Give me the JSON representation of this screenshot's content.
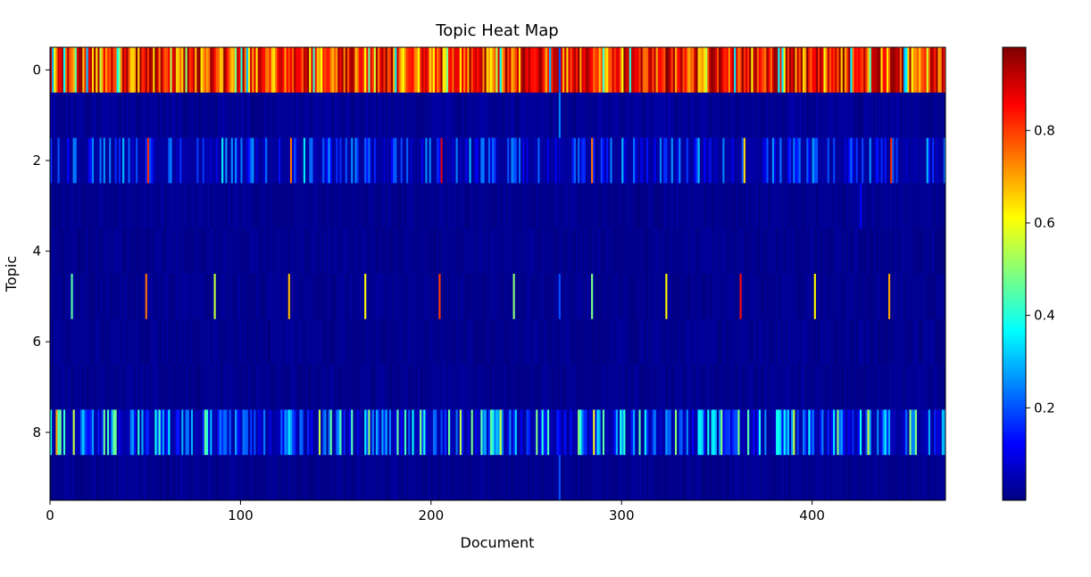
{
  "chart_data": {
    "type": "heatmap",
    "title": "Topic Heat Map",
    "xlabel": "Document",
    "ylabel": "Topic",
    "xlim": [
      0,
      470
    ],
    "ylim": [
      0,
      9
    ],
    "x_ticks": [
      0,
      100,
      200,
      300,
      400
    ],
    "y_ticks": [
      0,
      2,
      4,
      6,
      8
    ],
    "n_documents": 470,
    "n_topics": 10,
    "colormap": "jet",
    "color_range": [
      0,
      0.98
    ],
    "colorbar_ticks": [
      0.2,
      0.4,
      0.6,
      0.8
    ],
    "grid": false,
    "rows": [
      {
        "topic": 0,
        "pattern": "dense",
        "typical_range": [
          0.6,
          0.98
        ],
        "note_events": [
          [
            1,
            0.3
          ],
          [
            13,
            0.45
          ],
          [
            26,
            0.55
          ],
          [
            100,
            0.4
          ],
          [
            138,
            0.42
          ],
          [
            262,
            0.3
          ],
          [
            267,
            0.2
          ],
          [
            304,
            0.4
          ],
          [
            384,
            0.35
          ],
          [
            430,
            0.45
          ],
          [
            448,
            0.3
          ]
        ]
      },
      {
        "topic": 1,
        "pattern": "background",
        "typical_range": [
          0.0,
          0.04
        ],
        "events": [
          [
            267,
            0.25
          ]
        ]
      },
      {
        "topic": 2,
        "pattern": "sparse",
        "typical_range": [
          0.02,
          0.28
        ],
        "events": [
          [
            51,
            0.82
          ],
          [
            126,
            0.75
          ],
          [
            133,
            0.35
          ],
          [
            205,
            0.88
          ],
          [
            284,
            0.75
          ],
          [
            364,
            0.65
          ],
          [
            441,
            0.82
          ],
          [
            4,
            0.2
          ],
          [
            22,
            0.25
          ],
          [
            38,
            0.3
          ],
          [
            90,
            0.35
          ],
          [
            160,
            0.25
          ],
          [
            180,
            0.2
          ],
          [
            220,
            0.3
          ],
          [
            240,
            0.2
          ],
          [
            300,
            0.3
          ],
          [
            320,
            0.25
          ],
          [
            340,
            0.3
          ],
          [
            400,
            0.28
          ],
          [
            420,
            0.22
          ],
          [
            460,
            0.3
          ]
        ]
      },
      {
        "topic": 3,
        "pattern": "background",
        "typical_range": [
          0.0,
          0.03
        ],
        "events": [
          [
            425,
            0.12
          ]
        ]
      },
      {
        "topic": 4,
        "pattern": "background",
        "typical_range": [
          0.0,
          0.03
        ],
        "events": []
      },
      {
        "topic": 5,
        "pattern": "background",
        "typical_range": [
          0.0,
          0.03
        ],
        "events": [
          [
            11,
            0.45
          ],
          [
            50,
            0.75
          ],
          [
            86,
            0.55
          ],
          [
            125,
            0.68
          ],
          [
            165,
            0.62
          ],
          [
            204,
            0.8
          ],
          [
            243,
            0.5
          ],
          [
            267,
            0.2
          ],
          [
            284,
            0.48
          ],
          [
            323,
            0.62
          ],
          [
            362,
            0.85
          ],
          [
            401,
            0.62
          ],
          [
            440,
            0.7
          ]
        ]
      },
      {
        "topic": 6,
        "pattern": "background",
        "typical_range": [
          0.0,
          0.03
        ],
        "events": []
      },
      {
        "topic": 7,
        "pattern": "background",
        "typical_range": [
          0.0,
          0.03
        ],
        "events": []
      },
      {
        "topic": 8,
        "pattern": "dense",
        "typical_range": [
          0.05,
          0.5
        ],
        "events": [
          [
            3,
            0.7
          ],
          [
            12,
            0.55
          ],
          [
            141,
            0.55
          ],
          [
            167,
            0.5
          ],
          [
            215,
            0.55
          ],
          [
            236,
            0.55
          ],
          [
            285,
            0.6
          ],
          [
            309,
            0.45
          ],
          [
            328,
            0.5
          ],
          [
            390,
            0.55
          ],
          [
            413,
            0.5
          ],
          [
            429,
            0.55
          ],
          [
            451,
            0.5
          ]
        ]
      },
      {
        "topic": 9,
        "pattern": "background",
        "typical_range": [
          0.0,
          0.03
        ],
        "events": [
          [
            267,
            0.2
          ]
        ]
      }
    ]
  }
}
